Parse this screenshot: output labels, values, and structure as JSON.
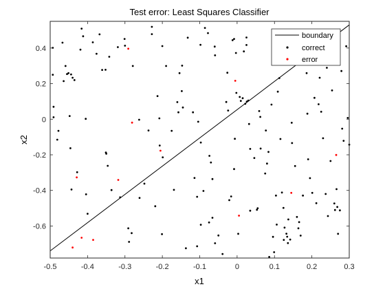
{
  "chart_data": {
    "type": "scatter",
    "title": "Test error: Least Squares Classifier",
    "xlabel": "x1",
    "ylabel": "x2",
    "xlim": [
      -0.5,
      0.3
    ],
    "ylim": [
      -0.78,
      0.55
    ],
    "xticks": [
      -0.5,
      -0.4,
      -0.3,
      -0.2,
      -0.1,
      0,
      0.1,
      0.2,
      0.3
    ],
    "xtick_labels": [
      "-0.5",
      "-0.4",
      "-0.3",
      "-0.2",
      "-0.1",
      "0",
      "0.1",
      "0.2",
      "0.3"
    ],
    "yticks": [
      -0.6,
      -0.4,
      -0.2,
      0,
      0.2,
      0.4
    ],
    "ytick_labels": [
      "-0.6",
      "-0.4",
      "-0.2",
      "0",
      "0.2",
      "0.4"
    ],
    "grid": false,
    "legend_position": "top-right",
    "colors": {
      "boundary": "#000000",
      "correct": "#000000",
      "error": "#ff0000"
    },
    "boundary": {
      "name": "boundary",
      "x": [
        -0.5,
        0.3
      ],
      "y": [
        -0.74,
        0.53
      ]
    },
    "series": [
      {
        "name": "correct",
        "points": [
          [
            -0.493,
            0.401
          ],
          [
            -0.493,
            0.25
          ],
          [
            -0.491,
            0.07
          ],
          [
            -0.491,
            0.011
          ],
          [
            -0.481,
            -0.115
          ],
          [
            -0.478,
            -0.065
          ],
          [
            -0.467,
            0.43
          ],
          [
            -0.464,
            0.214
          ],
          [
            -0.459,
            0.299
          ],
          [
            -0.455,
            0.254
          ],
          [
            -0.451,
            0.259
          ],
          [
            -0.444,
            0.252
          ],
          [
            -0.44,
            0.233
          ],
          [
            -0.435,
            0.22
          ],
          [
            -0.448,
            0.018
          ],
          [
            -0.446,
            -0.163
          ],
          [
            -0.443,
            -0.395
          ],
          [
            -0.428,
            -0.298
          ],
          [
            -0.419,
            0.391
          ],
          [
            -0.416,
            0.509
          ],
          [
            -0.412,
            0.466
          ],
          [
            -0.405,
            0.002
          ],
          [
            -0.404,
            -0.422
          ],
          [
            -0.4,
            -0.531
          ],
          [
            -0.386,
            0.432
          ],
          [
            -0.376,
            0.368
          ],
          [
            -0.368,
            0.477
          ],
          [
            -0.361,
            0.277
          ],
          [
            -0.352,
            0.278
          ],
          [
            -0.351,
            -0.187
          ],
          [
            -0.35,
            -0.194
          ],
          [
            -0.346,
            -0.262
          ],
          [
            -0.342,
            0.351
          ],
          [
            -0.336,
            -0.398
          ],
          [
            -0.319,
            0.405
          ],
          [
            -0.313,
            -0.439
          ],
          [
            -0.301,
            0.451
          ],
          [
            -0.3,
            0.413
          ],
          [
            -0.291,
            -0.613
          ],
          [
            -0.289,
            -0.689
          ],
          [
            -0.282,
            -0.64
          ],
          [
            -0.279,
            0.299
          ],
          [
            -0.262,
            -0.003
          ],
          [
            -0.261,
            -0.442
          ],
          [
            -0.248,
            -0.362
          ],
          [
            -0.237,
            -0.063
          ],
          [
            -0.228,
            0.519
          ],
          [
            -0.228,
            0.478
          ],
          [
            -0.219,
            -0.489
          ],
          [
            -0.213,
            0.13
          ],
          [
            -0.208,
            0.005
          ],
          [
            -0.207,
            -0.148
          ],
          [
            -0.201,
            -0.646
          ],
          [
            -0.199,
            -0.214
          ],
          [
            -0.2,
            0.411
          ],
          [
            -0.19,
            0.299
          ],
          [
            -0.175,
            -0.065
          ],
          [
            -0.169,
            -0.397
          ],
          [
            -0.16,
            0.096
          ],
          [
            -0.157,
            0.039
          ],
          [
            -0.154,
            0.259
          ],
          [
            -0.148,
            0.158
          ],
          [
            -0.145,
            0.066
          ],
          [
            -0.147,
            0.301
          ],
          [
            -0.137,
            -0.725
          ],
          [
            -0.132,
            0.458
          ],
          [
            -0.118,
            0.039
          ],
          [
            -0.114,
            -0.33
          ],
          [
            -0.107,
            -0.436
          ],
          [
            -0.107,
            -0.714
          ],
          [
            -0.104,
            -0.014
          ],
          [
            -0.098,
            0.418
          ],
          [
            -0.097,
            -0.131
          ],
          [
            -0.097,
            -0.593
          ],
          [
            -0.09,
            -0.403
          ],
          [
            -0.086,
            0.513
          ],
          [
            -0.078,
            0.484
          ],
          [
            -0.075,
            -0.58
          ],
          [
            -0.074,
            -0.206
          ],
          [
            -0.07,
            -0.243
          ],
          [
            -0.066,
            -0.336
          ],
          [
            -0.066,
            -0.554
          ],
          [
            -0.06,
            0.408
          ],
          [
            -0.059,
            0.359
          ],
          [
            -0.059,
            -0.697
          ],
          [
            -0.05,
            -0.653
          ],
          [
            -0.039,
            -0.757
          ],
          [
            -0.029,
            0.097
          ],
          [
            -0.026,
            0.261
          ],
          [
            -0.024,
            0.049
          ],
          [
            -0.021,
            -0.455
          ],
          [
            -0.016,
            -0.434
          ],
          [
            -0.012,
            0.444
          ],
          [
            -0.008,
            0.451
          ],
          [
            -0.006,
            -0.11
          ],
          [
            -0.008,
            -0.28
          ],
          [
            -0.002,
            0.148
          ],
          [
            -0.003,
            0.372
          ],
          [
            0.003,
            -0.644
          ],
          [
            0.007,
            0.125
          ],
          [
            0.01,
            0.103
          ],
          [
            0.015,
            0.118
          ],
          [
            0.018,
            0.381
          ],
          [
            0.022,
            0.087
          ],
          [
            0.025,
            0.417
          ],
          [
            0.025,
            0.459
          ],
          [
            0.026,
            0.099
          ],
          [
            0.03,
            0.105
          ],
          [
            0.032,
            -0.027
          ],
          [
            0.035,
            -0.167
          ],
          [
            0.035,
            -0.514
          ],
          [
            0.046,
            -0.218
          ],
          [
            0.053,
            -0.509
          ],
          [
            0.055,
            -0.5
          ],
          [
            0.059,
            0.046
          ],
          [
            0.062,
            0.013
          ],
          [
            0.063,
            -0.165
          ],
          [
            0.075,
            -0.305
          ],
          [
            0.077,
            -0.063
          ],
          [
            0.08,
            -0.249
          ],
          [
            0.084,
            -0.184
          ],
          [
            0.086,
            -0.774
          ],
          [
            0.092,
            0.082
          ],
          [
            0.096,
            -0.661
          ],
          [
            0.099,
            -0.747
          ],
          [
            0.104,
            -0.429
          ],
          [
            0.106,
            -0.592
          ],
          [
            0.109,
            0.155
          ],
          [
            0.113,
            0.231
          ],
          [
            0.116,
            -0.111
          ],
          [
            0.12,
            -0.412
          ],
          [
            0.124,
            -0.498
          ],
          [
            0.125,
            -0.678
          ],
          [
            0.127,
            -0.609
          ],
          [
            0.132,
            -0.643
          ],
          [
            0.134,
            -0.66
          ],
          [
            0.136,
            -0.696
          ],
          [
            0.137,
            -0.563
          ],
          [
            0.142,
            -0.676
          ],
          [
            0.146,
            -0.02
          ],
          [
            0.147,
            -0.134
          ],
          [
            0.155,
            -0.263
          ],
          [
            0.16,
            -0.549
          ],
          [
            0.164,
            -0.613
          ],
          [
            0.166,
            -0.578
          ],
          [
            0.17,
            -0.654
          ],
          [
            0.176,
            -0.429
          ],
          [
            0.188,
            0.031
          ],
          [
            0.19,
            -0.225
          ],
          [
            0.195,
            -0.331
          ],
          [
            0.201,
            -0.414
          ],
          [
            0.207,
            0.12
          ],
          [
            0.212,
            -0.472
          ],
          [
            0.218,
            0.084
          ],
          [
            0.225,
            0.042
          ],
          [
            0.23,
            -0.107
          ],
          [
            0.237,
            -0.42
          ],
          [
            0.243,
            -0.544
          ],
          [
            0.25,
            -0.235
          ],
          [
            0.254,
            0.162
          ],
          [
            0.26,
            -0.473
          ],
          [
            0.262,
            -0.51
          ],
          [
            0.266,
            -0.393
          ],
          [
            0.268,
            -0.493
          ],
          [
            0.27,
            -0.644
          ],
          [
            0.275,
            -0.512
          ],
          [
            0.279,
            0.271
          ],
          [
            0.281,
            -0.053
          ],
          [
            0.285,
            -0.121
          ],
          [
            0.292,
            0.41
          ],
          [
            0.296,
            0.007
          ],
          [
            0.3,
            -0.143
          ],
          [
            0.192,
            0.451
          ],
          [
            0.13,
            0.376
          ],
          [
            0.158,
            0.498
          ],
          [
            0.212,
            0.342
          ],
          [
            0.24,
            0.289
          ],
          [
            0.221,
            0.233
          ],
          [
            0.186,
            0.259
          ],
          [
            0.254,
            0.384
          ]
        ]
      },
      {
        "name": "error",
        "points": [
          [
            -0.44,
            -0.721
          ],
          [
            -0.416,
            -0.666
          ],
          [
            -0.385,
            -0.678
          ],
          [
            -0.429,
            -0.327
          ],
          [
            -0.318,
            -0.341
          ],
          [
            -0.291,
            0.396
          ],
          [
            -0.281,
            -0.019
          ],
          [
            -0.205,
            -0.177
          ],
          [
            -0.005,
            0.216
          ],
          [
            0.005,
            -0.542
          ],
          [
            0.145,
            -0.414
          ],
          [
            0.265,
            -0.201
          ]
        ]
      }
    ]
  }
}
